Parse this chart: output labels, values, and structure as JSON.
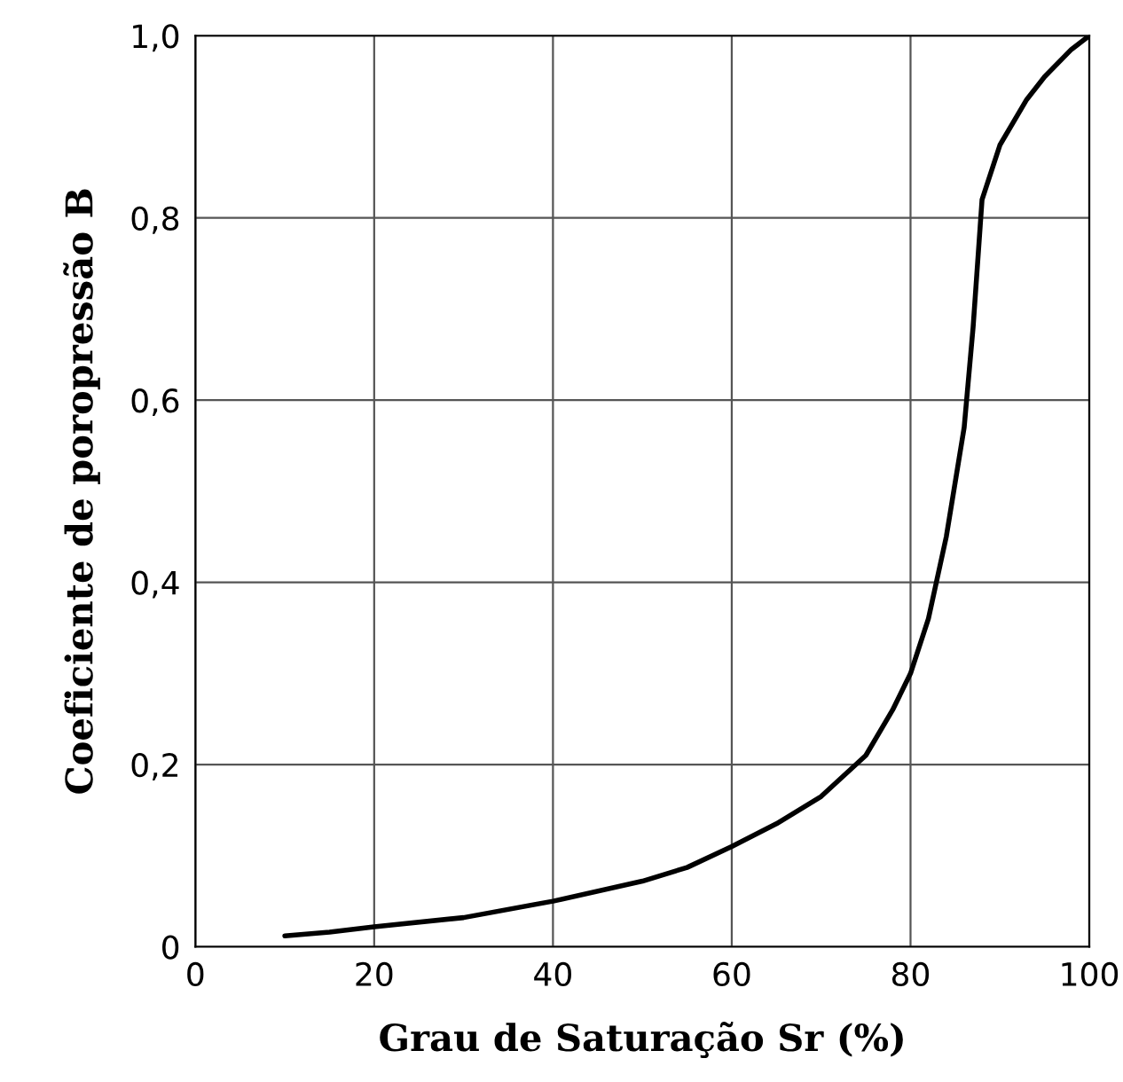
{
  "chart_data": {
    "type": "line",
    "xlabel": "Grau de Saturação Sr (%)",
    "ylabel": "Coeficiente de poropressão B",
    "x": [
      10,
      15,
      20,
      30,
      40,
      50,
      55,
      60,
      65,
      70,
      75,
      78,
      80,
      82,
      84,
      86,
      87,
      88,
      90,
      93,
      95,
      98,
      100
    ],
    "series": [
      {
        "color": "#000000",
        "values": [
          0.012,
          0.016,
          0.022,
          0.032,
          0.05,
          0.072,
          0.087,
          0.11,
          0.135,
          0.165,
          0.21,
          0.26,
          0.3,
          0.36,
          0.45,
          0.57,
          0.68,
          0.82,
          0.88,
          0.93,
          0.955,
          0.985,
          1.0
        ]
      }
    ],
    "xlim": [
      0,
      100
    ],
    "ylim": [
      0,
      1.0
    ],
    "xticks": [
      0,
      20,
      40,
      60,
      80,
      100
    ],
    "yticks": [
      0,
      {
        "value": 0.2,
        "label": "0,2"
      },
      {
        "value": 0.4,
        "label": "0,4"
      },
      {
        "value": 0.6,
        "label": "0,6"
      },
      {
        "value": 0.8,
        "label": "0,8"
      },
      {
        "value": 1.0,
        "label": "1,0"
      }
    ],
    "grid": true,
    "marker": "none",
    "line_style": "solid"
  }
}
